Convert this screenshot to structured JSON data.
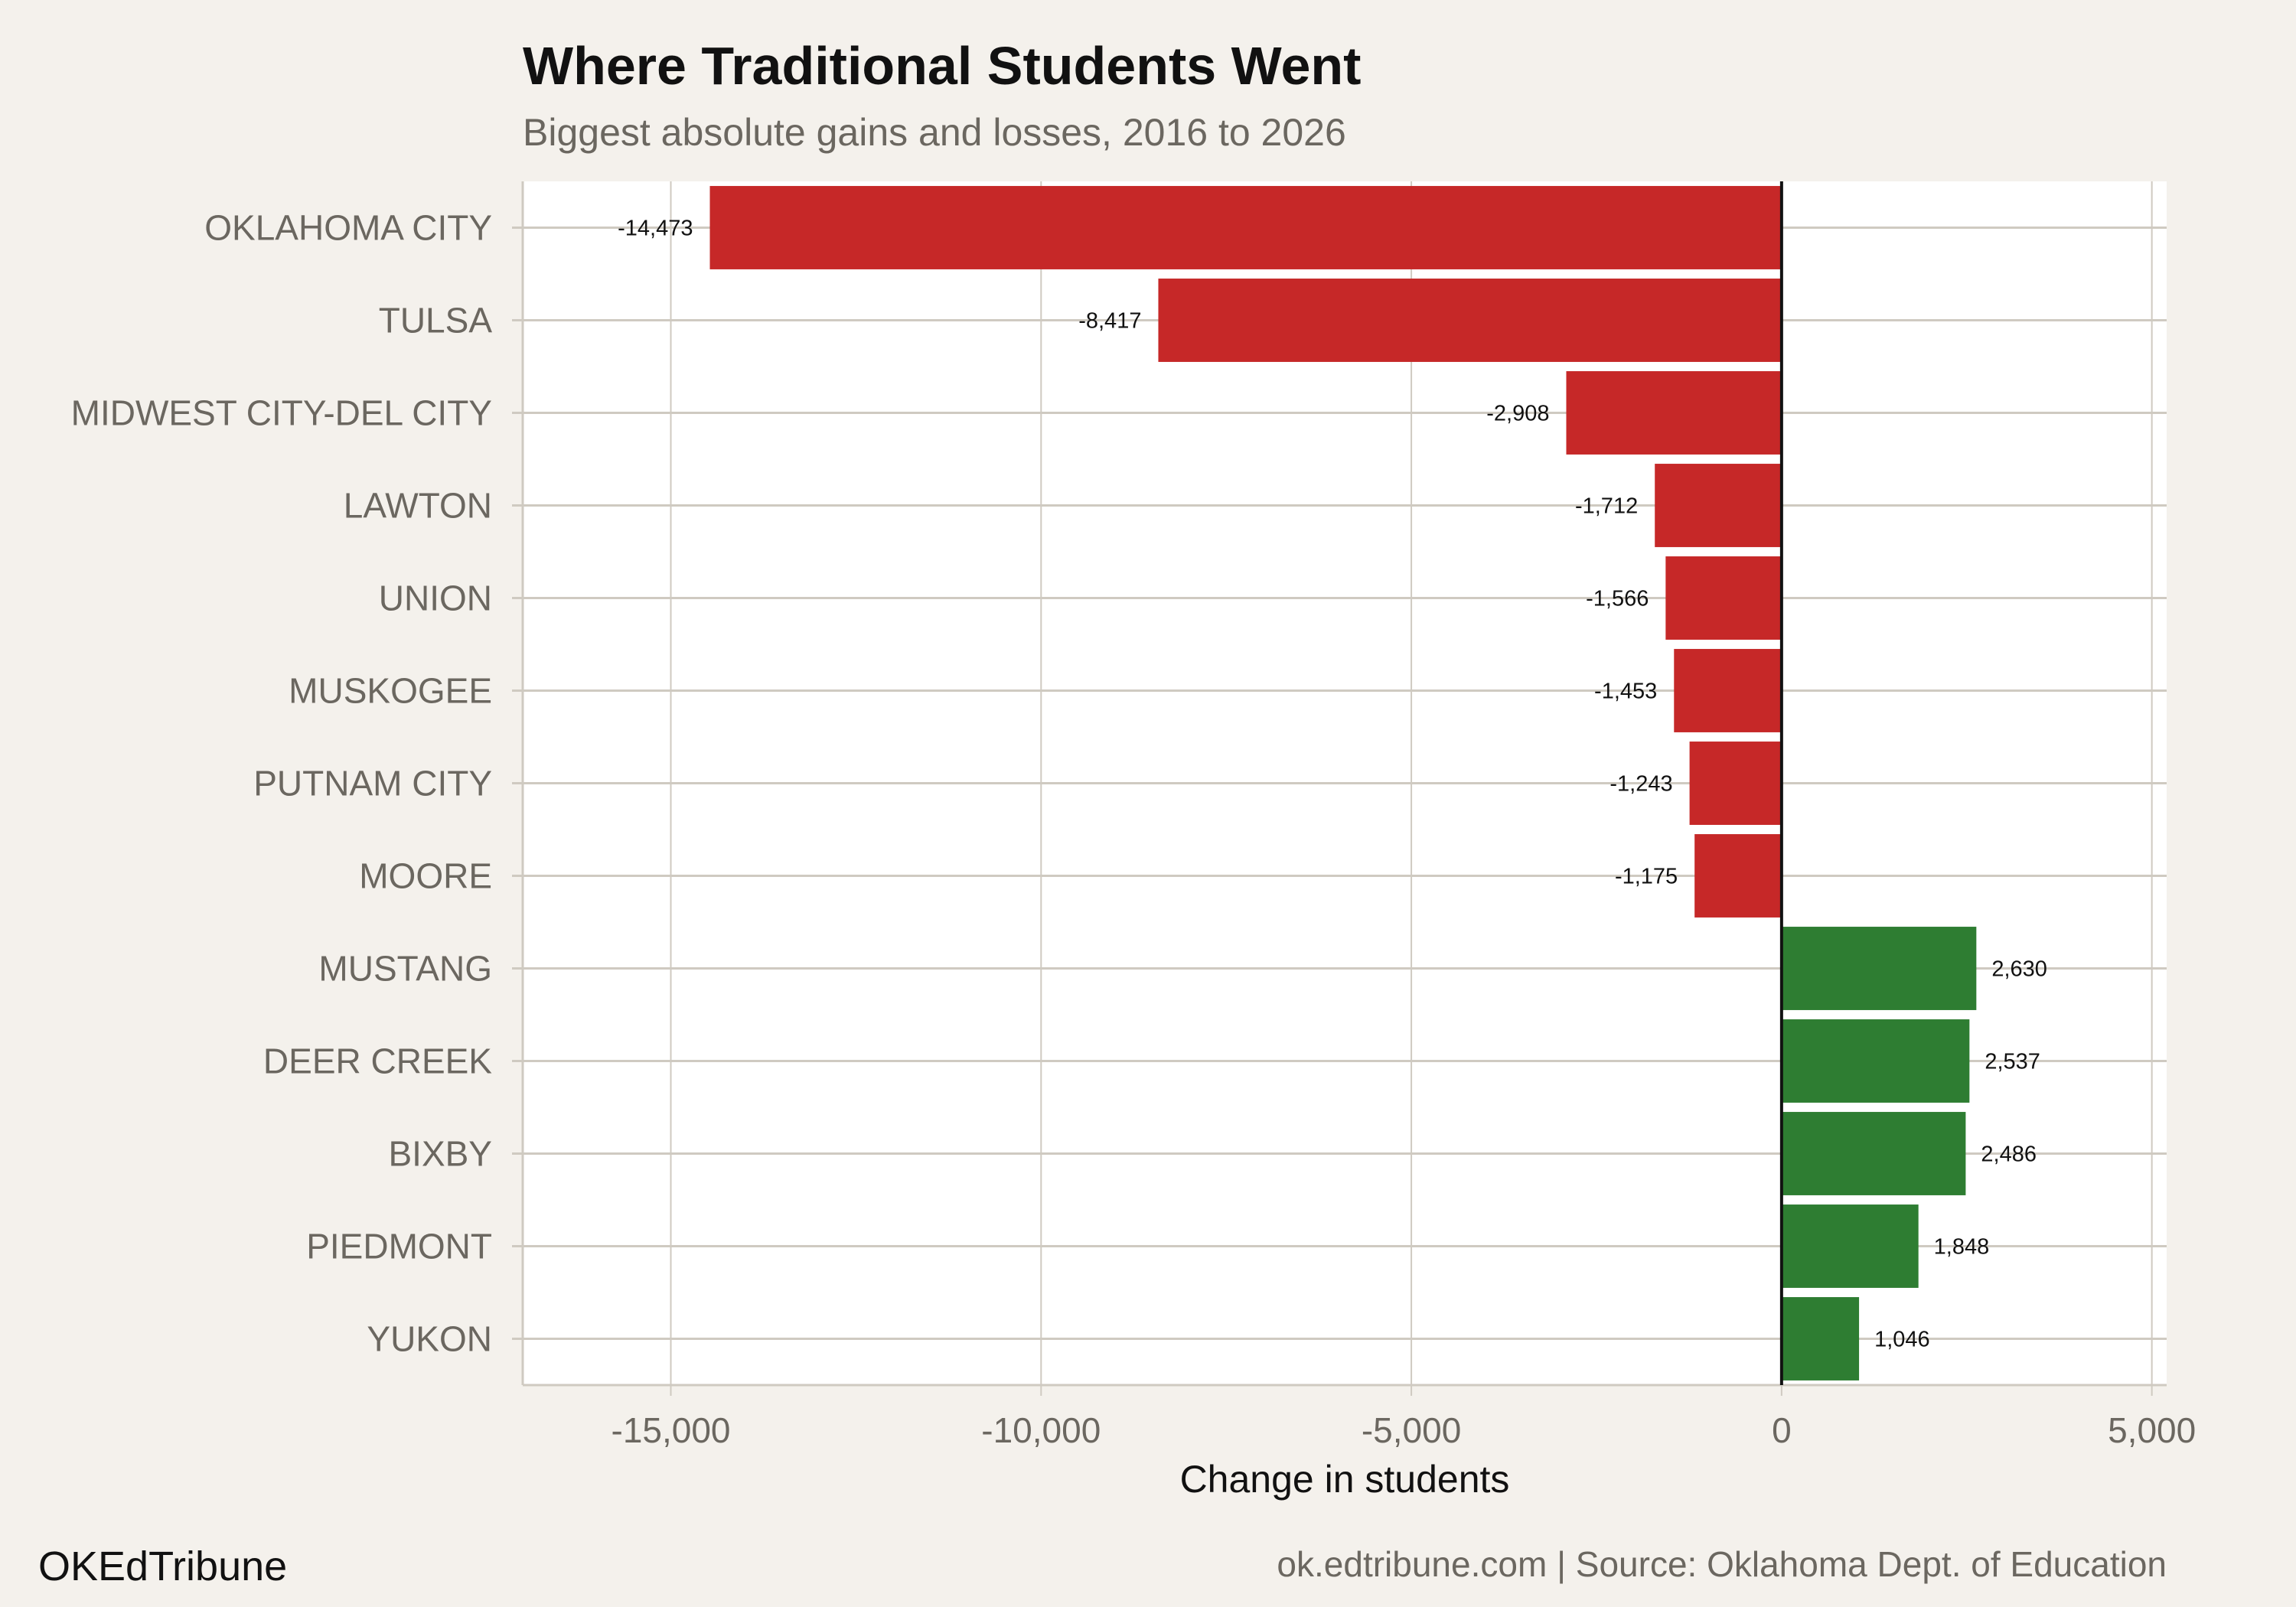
{
  "chart_data": {
    "type": "bar",
    "orientation": "horizontal",
    "title": "Where Traditional Students Went",
    "subtitle": "Biggest absolute gains and losses, 2016 to 2026",
    "xlabel": "Change in students",
    "ylabel": "",
    "xlim": [
      -17000,
      5200
    ],
    "xticks": [
      -15000,
      -10000,
      -5000,
      0,
      5000
    ],
    "xtick_labels": [
      "-15,000",
      "-10,000",
      "-5,000",
      "0",
      "5,000"
    ],
    "grid": true,
    "categories": [
      "OKLAHOMA CITY",
      "TULSA",
      "MIDWEST CITY-DEL CITY",
      "LAWTON",
      "UNION",
      "MUSKOGEE",
      "PUTNAM CITY",
      "MOORE",
      "MUSTANG",
      "DEER CREEK",
      "BIXBY",
      "PIEDMONT",
      "YUKON"
    ],
    "values": [
      -14473,
      -8417,
      -2908,
      -1712,
      -1566,
      -1453,
      -1243,
      -1175,
      2630,
      2537,
      2486,
      1848,
      1046
    ],
    "value_labels": [
      "-14,473",
      "-8,417",
      "-2,908",
      "-1,712",
      "-1,566",
      "-1,453",
      "-1,243",
      "-1,175",
      "2,630",
      "2,537",
      "2,486",
      "1,848",
      "1,046"
    ],
    "colors": {
      "loss": "#c62828",
      "gain": "#2e7d32",
      "background": "#f4f1ec",
      "panel": "#ffffff",
      "grid": "#cfcac1"
    }
  },
  "footer": {
    "brand": "OKEdTribune",
    "source": "ok.edtribune.com | Source: Oklahoma Dept. of Education"
  }
}
